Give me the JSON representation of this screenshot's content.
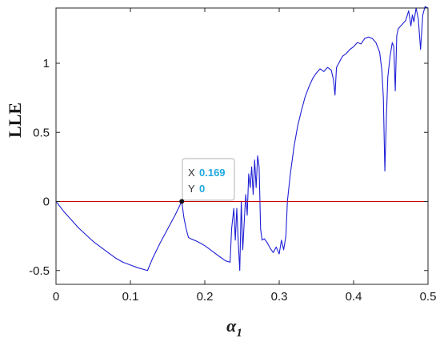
{
  "chart_data": {
    "type": "line",
    "title": "",
    "ylabel": "LLE",
    "xlabel_symbol": "α",
    "xlabel_subscript": "1",
    "xlim": [
      0,
      0.5
    ],
    "ylim": [
      -0.6,
      1.4
    ],
    "xticks": [
      0,
      0.1,
      0.2,
      0.3,
      0.4,
      0.5
    ],
    "xtick_labels": [
      "0",
      "0.1",
      "0.2",
      "0.3",
      "0.4",
      "0.5"
    ],
    "yticks": [
      -0.5,
      0,
      0.5,
      1
    ],
    "ytick_labels": [
      "-0.5",
      "0",
      "0.5",
      "1"
    ],
    "grid": false,
    "series": [
      {
        "color": "#1f1fd6",
        "x": [
          0,
          0.01,
          0.02,
          0.03,
          0.04,
          0.05,
          0.06,
          0.07,
          0.08,
          0.09,
          0.1,
          0.11,
          0.123,
          0.13,
          0.14,
          0.15,
          0.16,
          0.169,
          0.172,
          0.175,
          0.178,
          0.181,
          0.19,
          0.2,
          0.21,
          0.22,
          0.228,
          0.234,
          0.236,
          0.239,
          0.241,
          0.243,
          0.245,
          0.247,
          0.249,
          0.251,
          0.253,
          0.255,
          0.257,
          0.259,
          0.261,
          0.263,
          0.265,
          0.267,
          0.269,
          0.271,
          0.273,
          0.275,
          0.277,
          0.28,
          0.284,
          0.288,
          0.292,
          0.296,
          0.3,
          0.303,
          0.306,
          0.309,
          0.311,
          0.315,
          0.32,
          0.325,
          0.33,
          0.335,
          0.34,
          0.345,
          0.35,
          0.355,
          0.36,
          0.365,
          0.37,
          0.373,
          0.375,
          0.377,
          0.38,
          0.385,
          0.39,
          0.395,
          0.4,
          0.405,
          0.41,
          0.415,
          0.42,
          0.425,
          0.43,
          0.435,
          0.438,
          0.44,
          0.442,
          0.444,
          0.446,
          0.449,
          0.452,
          0.454,
          0.456,
          0.458,
          0.46,
          0.465,
          0.47,
          0.474,
          0.477,
          0.479,
          0.481,
          0.484,
          0.487,
          0.49,
          0.493,
          0.496,
          0.5
        ],
        "y": [
          0,
          -0.07,
          -0.13,
          -0.19,
          -0.24,
          -0.29,
          -0.33,
          -0.37,
          -0.41,
          -0.44,
          -0.46,
          -0.48,
          -0.5,
          -0.41,
          -0.3,
          -0.2,
          -0.1,
          0,
          -0.12,
          -0.2,
          -0.26,
          -0.27,
          -0.29,
          -0.32,
          -0.36,
          -0.4,
          -0.43,
          -0.44,
          -0.2,
          -0.05,
          -0.28,
          -0.05,
          -0.3,
          -0.5,
          0,
          -0.35,
          -0.15,
          0.05,
          -0.1,
          0.2,
          0.1,
          0.25,
          0.05,
          0.3,
          0.1,
          0.33,
          0.25,
          -0.2,
          -0.28,
          -0.27,
          -0.3,
          -0.34,
          -0.37,
          -0.33,
          -0.38,
          -0.28,
          -0.35,
          -0.25,
          0,
          0.2,
          0.4,
          0.55,
          0.66,
          0.76,
          0.83,
          0.89,
          0.93,
          0.96,
          0.94,
          0.97,
          0.95,
          0.88,
          0.77,
          0.97,
          1.0,
          1.05,
          1.07,
          1.1,
          1.12,
          1.15,
          1.14,
          1.18,
          1.19,
          1.18,
          1.15,
          1.08,
          0.95,
          0.75,
          0.22,
          0.6,
          0.9,
          1.05,
          1.15,
          1.12,
          0.8,
          1.2,
          1.25,
          1.28,
          1.31,
          1.38,
          1.27,
          1.35,
          1.3,
          1.4,
          1.32,
          1.1,
          1.35,
          1.41,
          1.4
        ]
      },
      {
        "color": "#cc0000",
        "x": [
          0,
          0.5
        ],
        "y": [
          0,
          0
        ]
      }
    ],
    "datatip": {
      "x_key": "X",
      "x_value": "0.169",
      "y_key": "Y",
      "y_value": "0"
    }
  }
}
